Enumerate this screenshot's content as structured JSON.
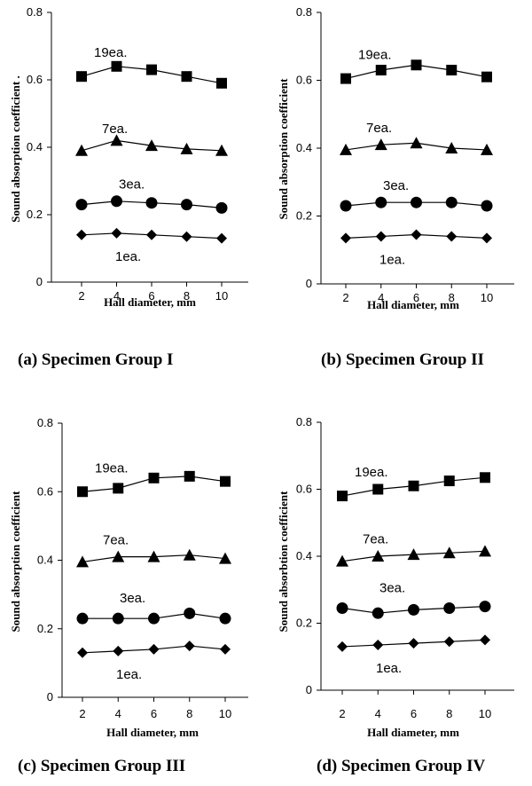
{
  "chart_data": [
    {
      "type": "line",
      "caption": "(a) Specimen Group I",
      "xlabel": "Hall diameter, mm",
      "ylabel": "Sound  absorption coefficient .",
      "x": [
        2,
        4,
        6,
        8,
        10
      ],
      "xticks": [
        "2",
        "4",
        "6",
        "8",
        "10"
      ],
      "yticks": [
        "0",
        "0.2",
        "0.4",
        "0.6",
        "0.8"
      ],
      "ylim": [
        0,
        0.8
      ],
      "grid": false,
      "series": [
        {
          "name": "19ea.",
          "marker": "square",
          "values": [
            0.61,
            0.64,
            0.63,
            0.61,
            0.59
          ]
        },
        {
          "name": "7ea.",
          "marker": "triangle",
          "values": [
            0.39,
            0.42,
            0.405,
            0.395,
            0.39
          ]
        },
        {
          "name": "3ea.",
          "marker": "circle",
          "values": [
            0.23,
            0.24,
            0.235,
            0.23,
            0.22
          ]
        },
        {
          "name": "1ea.",
          "marker": "diamond",
          "values": [
            0.14,
            0.145,
            0.14,
            0.135,
            0.13
          ]
        }
      ]
    },
    {
      "type": "line",
      "caption": "(b) Specimen Group II",
      "xlabel": "Hall diameter, mm",
      "ylabel": "Sound absorption coefficient",
      "x": [
        2,
        4,
        6,
        8,
        10
      ],
      "xticks": [
        "2",
        "4",
        "6",
        "8",
        "10"
      ],
      "yticks": [
        "0",
        "0.2",
        "0.4",
        "0.6",
        "0.8"
      ],
      "ylim": [
        0,
        0.8
      ],
      "grid": false,
      "series": [
        {
          "name": "19ea.",
          "marker": "square",
          "values": [
            0.605,
            0.63,
            0.645,
            0.63,
            0.61
          ]
        },
        {
          "name": "7ea.",
          "marker": "triangle",
          "values": [
            0.395,
            0.41,
            0.415,
            0.4,
            0.395
          ]
        },
        {
          "name": "3ea.",
          "marker": "circle",
          "values": [
            0.23,
            0.24,
            0.24,
            0.24,
            0.23
          ]
        },
        {
          "name": "1ea.",
          "marker": "diamond",
          "values": [
            0.135,
            0.14,
            0.145,
            0.14,
            0.135
          ]
        }
      ]
    },
    {
      "type": "line",
      "caption": "(c) Specimen Group III",
      "xlabel": "Hall diameter, mm",
      "ylabel": "Sound absorption coefficient",
      "x": [
        2,
        4,
        6,
        8,
        10
      ],
      "xticks": [
        "2",
        "4",
        "6",
        "8",
        "10"
      ],
      "yticks": [
        "0",
        "0.2",
        "0.4",
        "0.6",
        "0.8"
      ],
      "ylim": [
        0,
        0.8
      ],
      "grid": false,
      "series": [
        {
          "name": "19ea.",
          "marker": "square",
          "values": [
            0.6,
            0.61,
            0.64,
            0.645,
            0.63
          ]
        },
        {
          "name": "7ea.",
          "marker": "triangle",
          "values": [
            0.395,
            0.41,
            0.41,
            0.415,
            0.405
          ]
        },
        {
          "name": "3ea.",
          "marker": "circle",
          "values": [
            0.23,
            0.23,
            0.23,
            0.245,
            0.23
          ]
        },
        {
          "name": "1ea.",
          "marker": "diamond",
          "values": [
            0.13,
            0.135,
            0.14,
            0.15,
            0.14
          ]
        }
      ]
    },
    {
      "type": "line",
      "caption": "(d) Specimen Group IV",
      "xlabel": "Hall diameter, mm",
      "ylabel": "Sound absorbtion coefficient",
      "x": [
        2,
        4,
        6,
        8,
        10
      ],
      "xticks": [
        "2",
        "4",
        "6",
        "8",
        "10"
      ],
      "yticks": [
        "0",
        "0.2",
        "0.4",
        "0.6",
        "0.8"
      ],
      "ylim": [
        0,
        0.8
      ],
      "grid": false,
      "series": [
        {
          "name": "19ea.",
          "marker": "square",
          "values": [
            0.58,
            0.6,
            0.61,
            0.625,
            0.635
          ]
        },
        {
          "name": "7ea.",
          "marker": "triangle",
          "values": [
            0.385,
            0.4,
            0.405,
            0.41,
            0.415
          ]
        },
        {
          "name": "3ea.",
          "marker": "circle",
          "values": [
            0.245,
            0.23,
            0.24,
            0.245,
            0.25
          ]
        },
        {
          "name": "1ea.",
          "marker": "diamond",
          "values": [
            0.13,
            0.135,
            0.14,
            0.145,
            0.15
          ]
        }
      ]
    }
  ]
}
